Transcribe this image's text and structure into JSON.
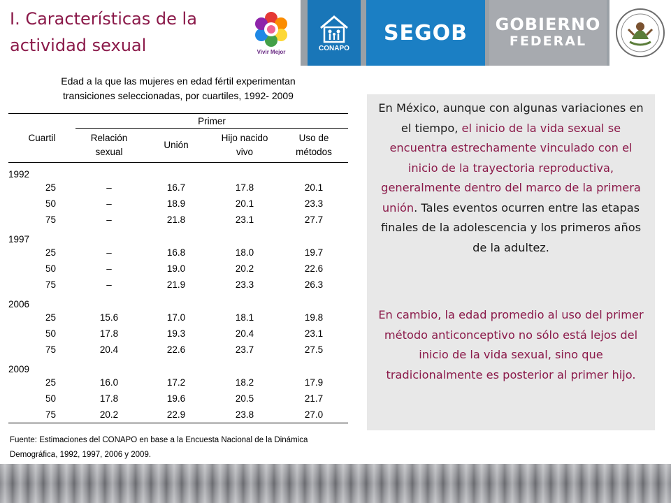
{
  "slide": {
    "title_line1": "I. Características de la",
    "title_line2": "actividad sexual"
  },
  "logos": {
    "vivir_mejor": "Vivir Mejor",
    "conapo": "CONAPO",
    "segob": "SEGOB",
    "gobierno_line1": "GOBIERNO",
    "gobierno_line2": "FEDERAL"
  },
  "table": {
    "title_line1": "Edad a la que las mujeres en edad fértil experimentan",
    "title_line2": "transiciones seleccionadas, por cuartiles, 1992- 2009",
    "group_header": "Primer",
    "col_cuartil": "Cuartil",
    "col_relacion_1": "Relación",
    "col_relacion_2": "sexual",
    "col_union": "Unión",
    "col_hijo_1": "Hijo nacido",
    "col_hijo_2": "vivo",
    "col_metodos_1": "Uso de",
    "col_metodos_2": "métodos",
    "years": [
      {
        "year": "1992",
        "rows": [
          {
            "q": "25",
            "relacion": "–",
            "union": "16.7",
            "hijo": "17.8",
            "metodos": "20.1"
          },
          {
            "q": "50",
            "relacion": "–",
            "union": "18.9",
            "hijo": "20.1",
            "metodos": "23.3"
          },
          {
            "q": "75",
            "relacion": "–",
            "union": "21.8",
            "hijo": "23.1",
            "metodos": "27.7"
          }
        ]
      },
      {
        "year": "1997",
        "rows": [
          {
            "q": "25",
            "relacion": "–",
            "union": "16.8",
            "hijo": "18.0",
            "metodos": "19.7"
          },
          {
            "q": "50",
            "relacion": "–",
            "union": "19.0",
            "hijo": "20.2",
            "metodos": "22.6"
          },
          {
            "q": "75",
            "relacion": "–",
            "union": "21.9",
            "hijo": "23.3",
            "metodos": "26.3"
          }
        ]
      },
      {
        "year": "2006",
        "rows": [
          {
            "q": "25",
            "relacion": "15.6",
            "union": "17.0",
            "hijo": "18.1",
            "metodos": "19.8"
          },
          {
            "q": "50",
            "relacion": "17.8",
            "union": "19.3",
            "hijo": "20.4",
            "metodos": "23.1"
          },
          {
            "q": "75",
            "relacion": "20.4",
            "union": "22.6",
            "hijo": "23.7",
            "metodos": "27.5"
          }
        ]
      },
      {
        "year": "2009",
        "rows": [
          {
            "q": "25",
            "relacion": "16.0",
            "union": "17.2",
            "hijo": "18.2",
            "metodos": "17.9"
          },
          {
            "q": "50",
            "relacion": "17.8",
            "union": "19.6",
            "hijo": "20.5",
            "metodos": "21.7"
          },
          {
            "q": "75",
            "relacion": "20.2",
            "union": "22.9",
            "hijo": "23.8",
            "metodos": "27.0"
          }
        ]
      }
    ],
    "source_line1": "Fuente: Estimaciones del CONAPO en base a la Encuesta Nacional de la Dinámica",
    "source_line2": "Demográfica, 1992, 1997, 2006 y 2009."
  },
  "textbox": {
    "p1_a": "En México, aunque con algunas variaciones en el tiempo, ",
    "p1_b": "el inicio de la vida sexual se encuentra estrechamente vinculado con el inicio de la trayectoria reproductiva, generalmente dentro del marco de la primera unión",
    "p1_c": ".  Tales eventos ocurren entre las etapas finales de la adolescencia y los primeros años de la adultez.",
    "p2": "En cambio, la edad promedio al uso del primer método anticonceptivo no sólo está lejos del inicio de la vida sexual, sino que tradicionalmente es posterior al primer hijo."
  },
  "colors": {
    "accent": "#8b1a4a",
    "segob_blue": "#1b7fc4",
    "banner_gray": "#9aa0a6",
    "textbox_bg": "#e8e8e8"
  }
}
